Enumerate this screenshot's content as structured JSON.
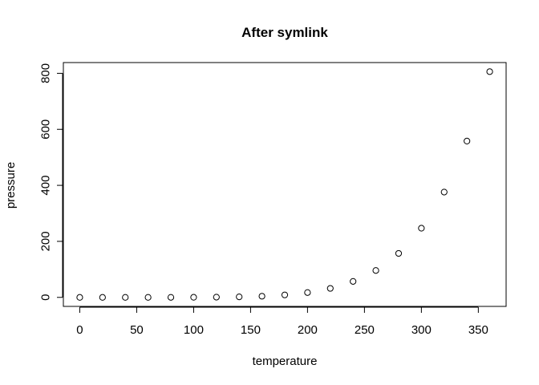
{
  "chart_data": {
    "type": "scatter",
    "title": "After symlink",
    "xlabel": "temperature",
    "ylabel": "pressure",
    "xlim": [
      -14.4,
      374.4
    ],
    "ylim": [
      -32.2,
      838.4
    ],
    "x_ticks": [
      0,
      50,
      100,
      150,
      200,
      250,
      300,
      350
    ],
    "y_ticks": [
      0,
      200,
      400,
      600,
      800
    ],
    "grid": false,
    "legend": "none",
    "point_style": "open-circle",
    "colors": {
      "points": "#000000",
      "axes": "#000000",
      "background": "#ffffff"
    },
    "x": [
      0,
      20,
      40,
      60,
      80,
      100,
      120,
      140,
      160,
      180,
      200,
      220,
      240,
      260,
      280,
      300,
      320,
      340,
      360
    ],
    "y": [
      0.0002,
      0.0012,
      0.006,
      0.03,
      0.09,
      0.27,
      0.75,
      1.85,
      4.2,
      8.8,
      17.3,
      32.1,
      57.0,
      96.0,
      157.0,
      247.0,
      376.0,
      558.0,
      806.0
    ]
  }
}
